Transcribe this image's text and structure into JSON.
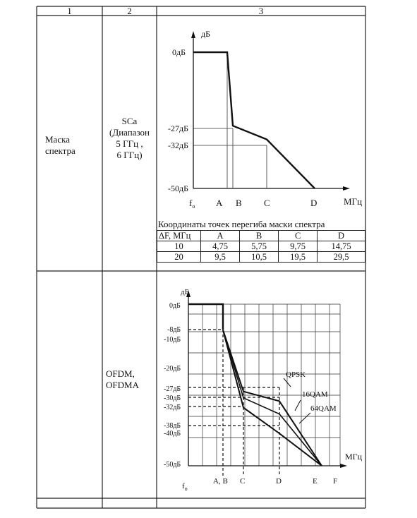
{
  "headers": [
    "1",
    "2",
    "3"
  ],
  "row1": {
    "col1": [
      "Маска",
      "спектра"
    ],
    "col2": [
      "SCa",
      "(Диапазон",
      "5 ГГц ,",
      "6 ГГц)"
    ]
  },
  "row2": {
    "col2": [
      "OFDM,",
      "OFDMA"
    ]
  },
  "chart1": {
    "type": "line",
    "ylabel": "дБ",
    "xlabel": "МГц",
    "y_ticks": [
      "0дБ",
      "-27дБ",
      "-32дБ",
      "-50дБ"
    ],
    "x_ticks": [
      "fo",
      "A",
      "B",
      "C",
      "D"
    ],
    "series": [
      {
        "points": [
          [
            "fo",
            0
          ],
          [
            "A",
            0
          ],
          [
            "B",
            -27
          ],
          [
            "C",
            -32
          ],
          [
            "D",
            -50
          ]
        ]
      }
    ],
    "table": {
      "title": "Координаты точек перегиба маски спектра",
      "columns": [
        "ΔF, МГц",
        "A",
        "B",
        "C",
        "D"
      ],
      "rows": [
        [
          "10",
          "4,75",
          "5,75",
          "9,75",
          "14,75"
        ],
        [
          "20",
          "9,5",
          "10,5",
          "19,5",
          "29,5"
        ]
      ]
    }
  },
  "chart2": {
    "type": "line",
    "ylabel": "дБ",
    "xlabel": "МГц",
    "y_ticks": [
      "0дБ",
      "-8дБ",
      "-10дБ",
      "-20дБ",
      "-27дБ",
      "-30дБ",
      "-32дБ",
      "-38дБ",
      "-40дБ",
      "-50дБ"
    ],
    "x_ticks": [
      "fo",
      "A, B",
      "C",
      "D",
      "E",
      "F"
    ],
    "series": [
      {
        "name": "QPSK",
        "points": [
          [
            "A,B",
            -8
          ],
          [
            "C",
            -27
          ],
          [
            "D",
            -30
          ],
          [
            "E",
            -50
          ]
        ]
      },
      {
        "name": "16QAM",
        "points": [
          [
            "A,B",
            -8
          ],
          [
            "C",
            -29
          ],
          [
            "D",
            -34
          ],
          [
            "E",
            -50
          ]
        ]
      },
      {
        "name": "64QAM",
        "points": [
          [
            "A,B",
            -8
          ],
          [
            "C",
            -32
          ],
          [
            "D",
            -40
          ],
          [
            "E",
            -50
          ]
        ]
      }
    ]
  },
  "chart_data": [
    {
      "type": "line",
      "ylabel": "дБ",
      "xlabel": "МГц",
      "x": [
        "fo",
        "A",
        "B",
        "C",
        "D"
      ],
      "series": [
        {
          "values": [
            0,
            0,
            -27,
            -32,
            -50
          ]
        }
      ],
      "ylim": [
        -50,
        0
      ]
    },
    {
      "type": "line",
      "ylabel": "дБ",
      "xlabel": "МГц",
      "x": [
        "A, B",
        "C",
        "D",
        "E"
      ],
      "series": [
        {
          "name": "QPSK",
          "values": [
            -8,
            -27,
            -30,
            -50
          ]
        },
        {
          "name": "16QAM",
          "values": [
            -8,
            -29,
            -34,
            -50
          ]
        },
        {
          "name": "64QAM",
          "values": [
            -8,
            -32,
            -40,
            -50
          ]
        }
      ],
      "ylim": [
        -50,
        0
      ]
    }
  ]
}
